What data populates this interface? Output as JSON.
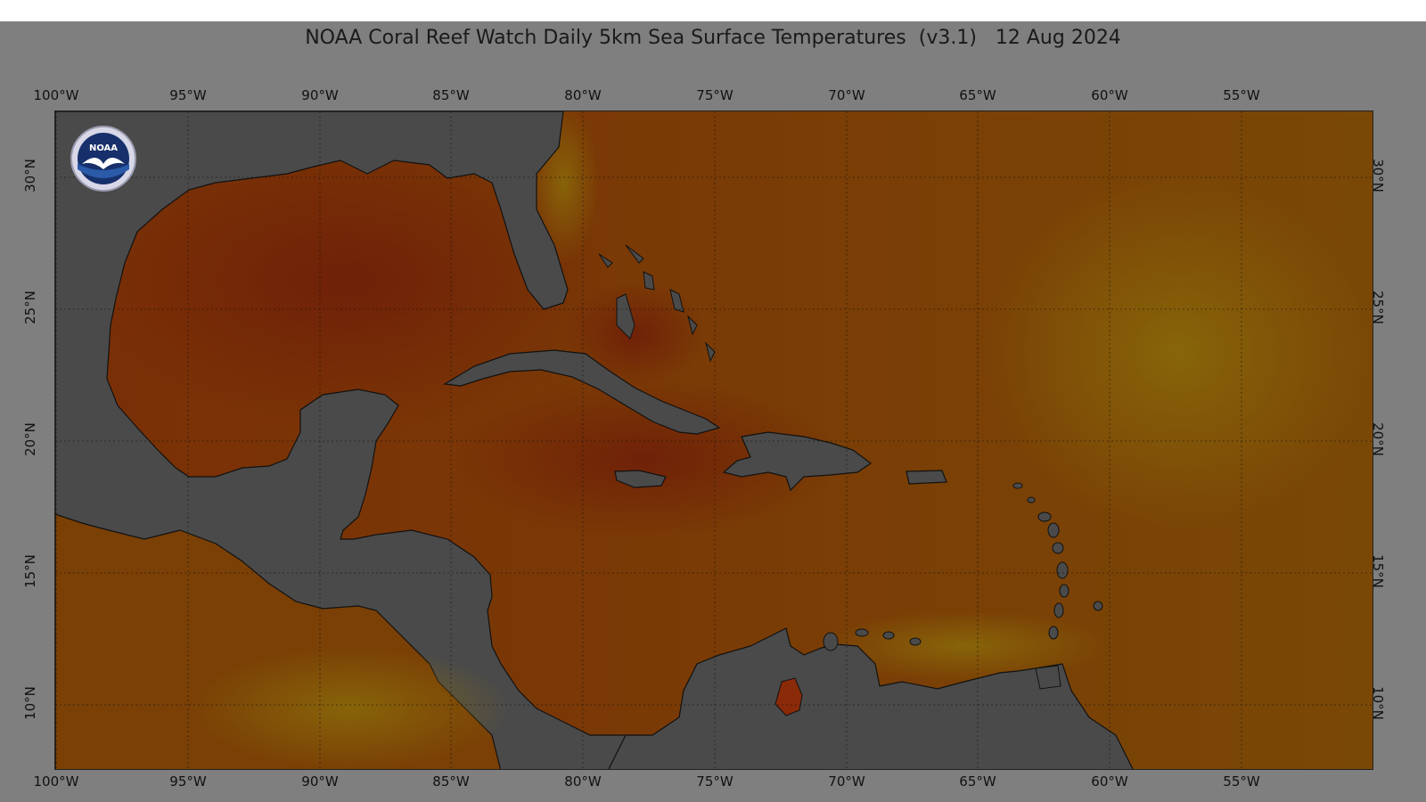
{
  "title": "NOAA Coral Reef Watch Daily 5km Sea Surface Temperatures  (v3.1)   12 Aug 2024",
  "logo_text": "NOAA",
  "map": {
    "lon_range": [
      -100,
      -50
    ],
    "lat_range": [
      7.5,
      32.5
    ],
    "lon_ticks": [
      "100°W",
      "95°W",
      "90°W",
      "85°W",
      "80°W",
      "75°W",
      "70°W",
      "65°W",
      "60°W",
      "55°W"
    ],
    "lat_ticks": [
      "30°N",
      "25°N",
      "20°N",
      "15°N",
      "10°N"
    ],
    "colors": {
      "frame": "#7f7f7f",
      "land": "#4a4a4a",
      "ocean_warm": "#7a3c06",
      "ocean_hot": "#7a2a08",
      "ocean_cool": "#7d5a08",
      "coast": "#111111"
    }
  }
}
